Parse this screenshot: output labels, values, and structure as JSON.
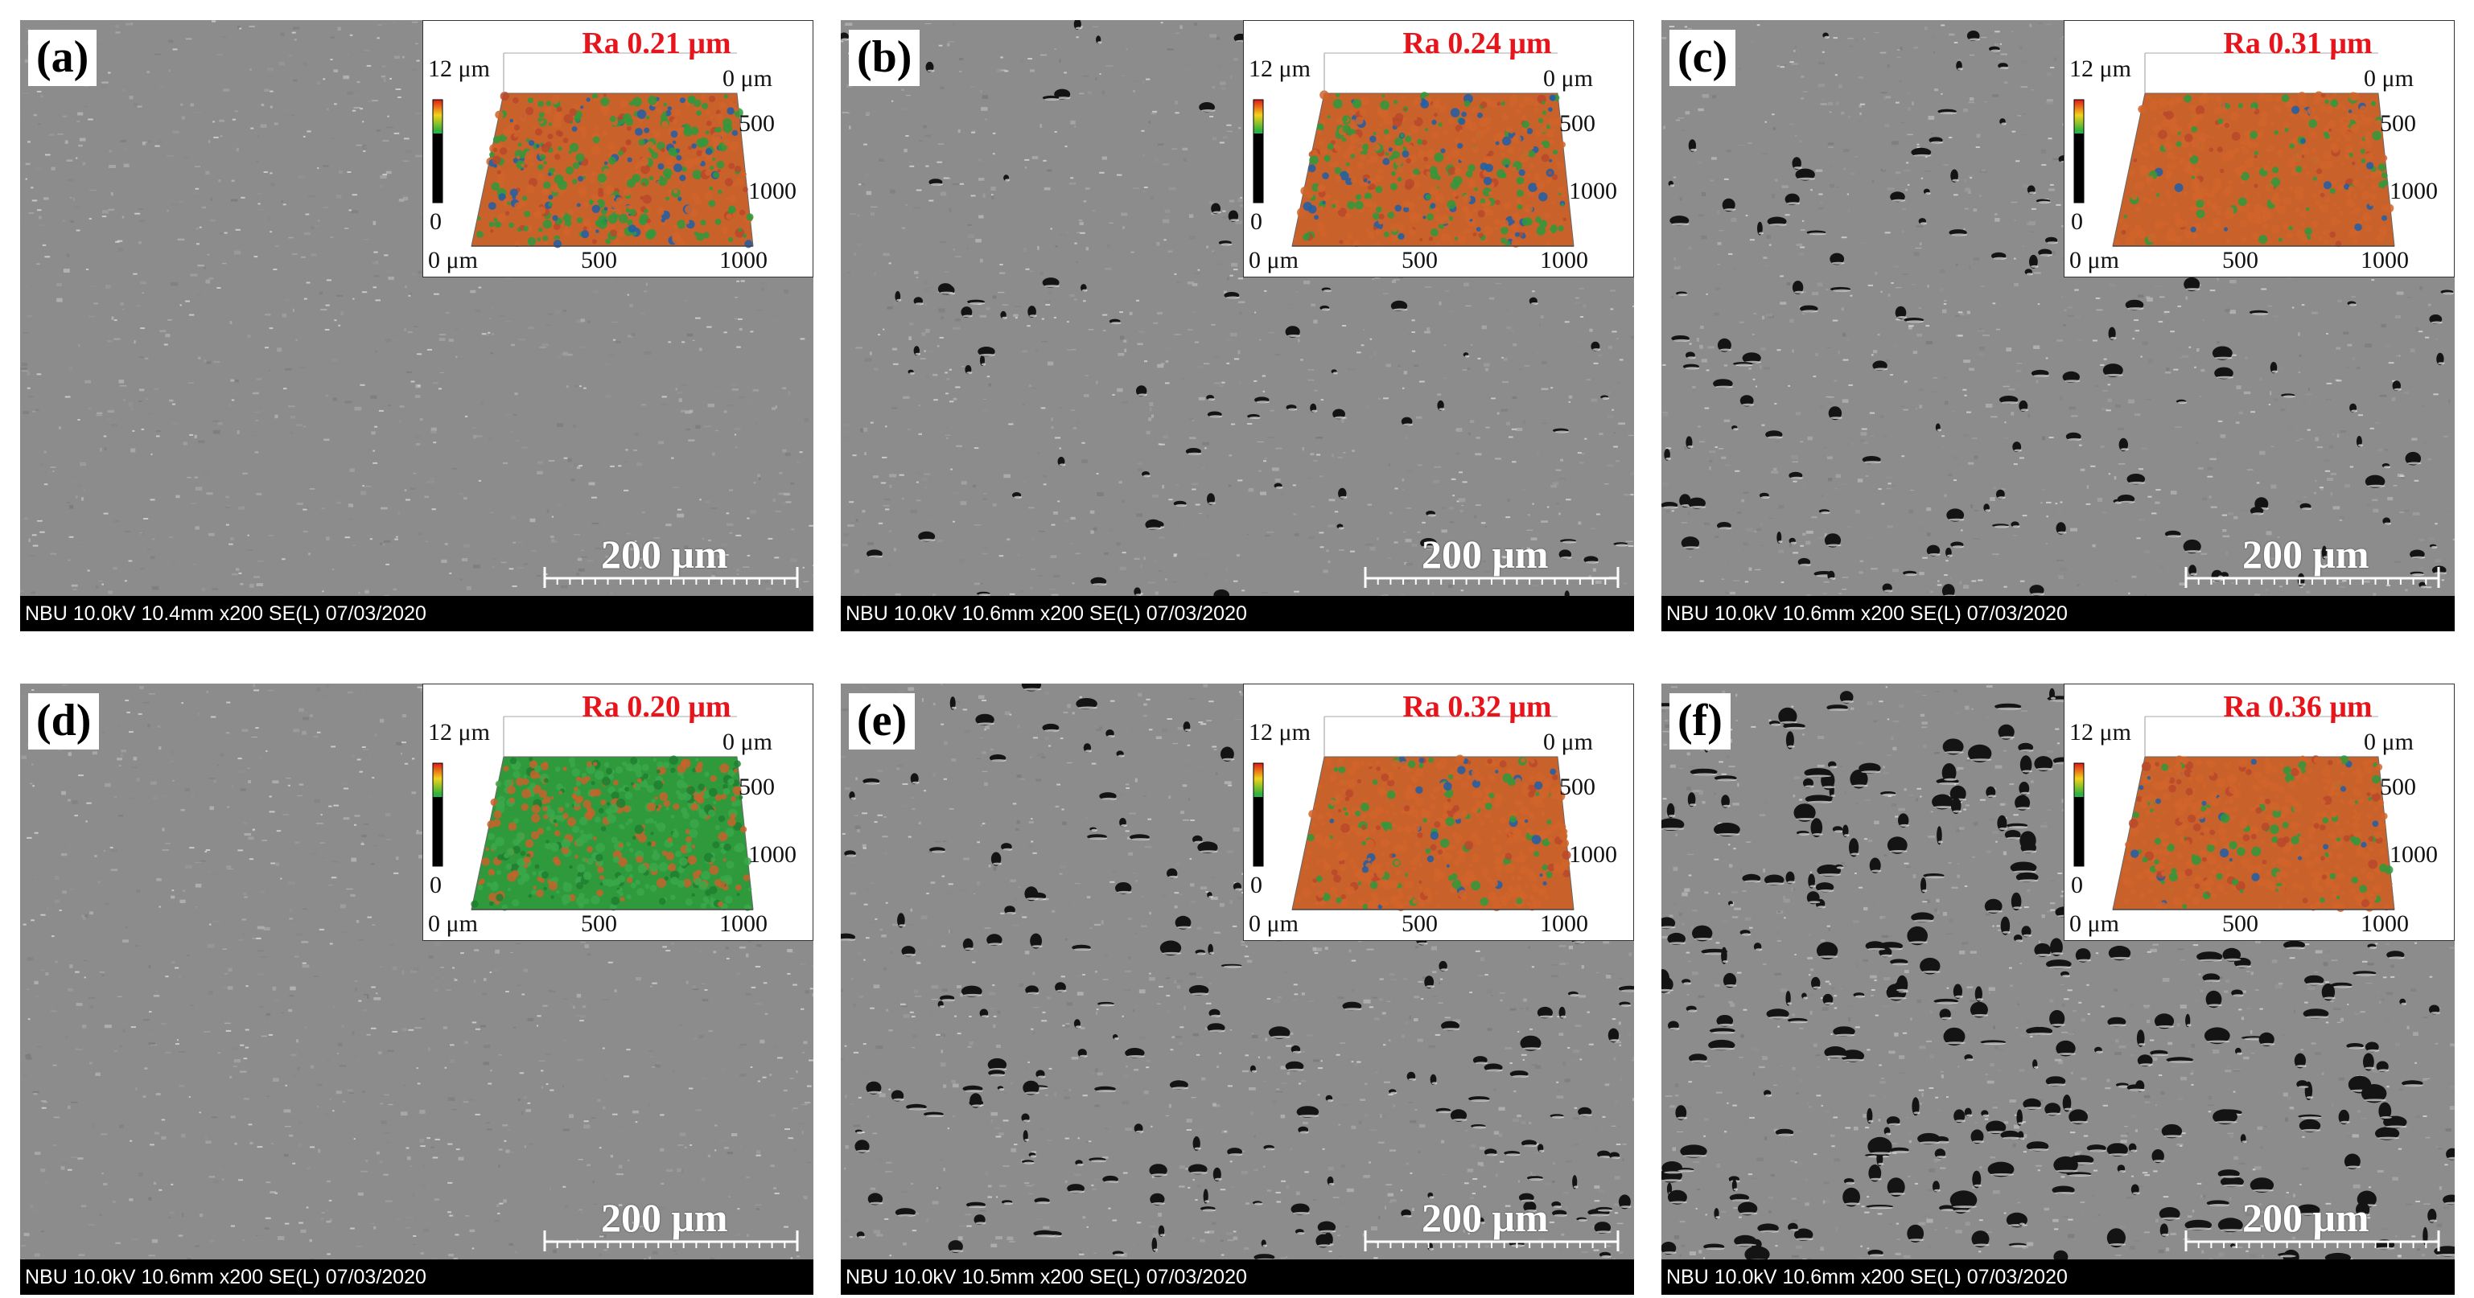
{
  "figure": {
    "panels": [
      {
        "label": "(a)",
        "ra": "Ra 0.21 μm",
        "info": "NBU 10.0kV 10.4mm x200 SE(L) 07/03/2020",
        "scale": "200 μm",
        "pore_density": 0.0,
        "topo": "low"
      },
      {
        "label": "(b)",
        "ra": "Ra 0.24 μm",
        "info": "NBU 10.0kV 10.6mm x200 SE(L) 07/03/2020",
        "scale": "200 μm",
        "pore_density": 0.25,
        "topo": "mid"
      },
      {
        "label": "(c)",
        "ra": "Ra 0.31 μm",
        "info": "NBU 10.0kV 10.6mm x200 SE(L) 07/03/2020",
        "scale": "200 μm",
        "pore_density": 0.45,
        "topo": "high"
      },
      {
        "label": "(d)",
        "ra": "Ra 0.20 μm",
        "info": "NBU 10.0kV 10.6mm x200 SE(L) 07/03/2020",
        "scale": "200 μm",
        "pore_density": 0.0,
        "topo": "green"
      },
      {
        "label": "(e)",
        "ra": "Ra 0.32 μm",
        "info": "NBU 10.0kV 10.5mm x200 SE(L) 07/03/2020",
        "scale": "200 μm",
        "pore_density": 0.6,
        "topo": "high"
      },
      {
        "label": "(f)",
        "ra": "Ra 0.36 μm",
        "info": "NBU 10.0kV 10.6mm x200 SE(L) 07/03/2020",
        "scale": "200 μm",
        "pore_density": 1.0,
        "topo": "high"
      }
    ],
    "inset_axes": {
      "z_max": "12 μm",
      "z_min": "0",
      "y_ticks": [
        "0 μm",
        "500",
        "1000"
      ],
      "x_ticks": [
        "0 μm",
        "500",
        "1000"
      ]
    },
    "colors": {
      "ra_text": "#e8141c",
      "info_bar": "#000000",
      "sem_base": "#8e8e8e",
      "topo_green": "#2f9a3c",
      "topo_orange": "#c8622a"
    }
  }
}
